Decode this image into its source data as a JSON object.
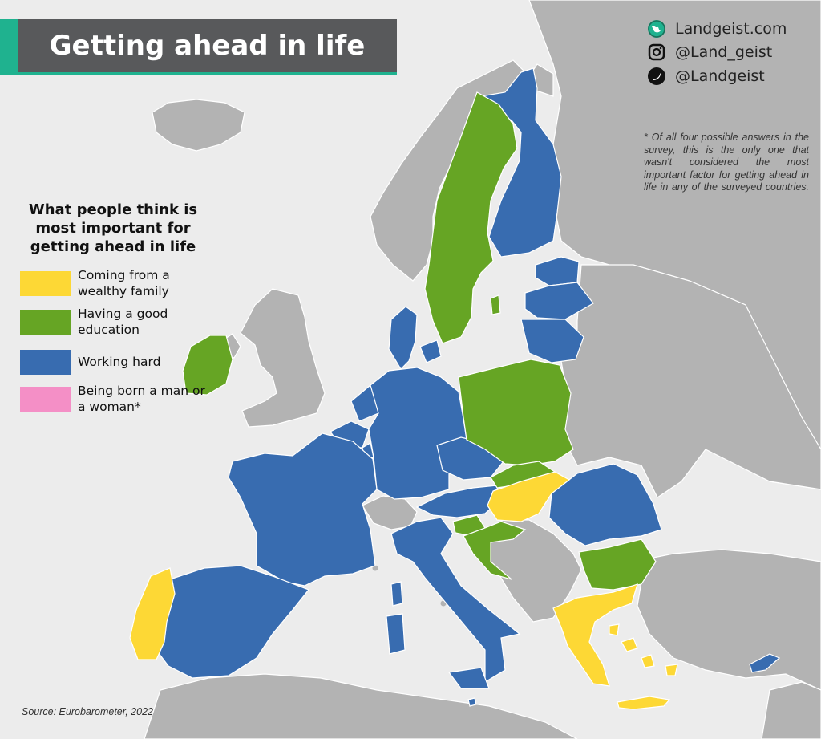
{
  "title": "Getting ahead in life",
  "brand": {
    "website": "Landgeist.com",
    "instagram": "@Land_geist",
    "twitter": "@Landgeist",
    "website_icon": "globe-icon",
    "instagram_icon": "instagram-icon",
    "twitter_icon": "twitter-bird-icon"
  },
  "footnote": "* Of all four possible answers in the survey, this is the only one that wasn't considered the most important factor for getting ahead in life in any of the surveyed countries.",
  "legend": {
    "title": "What people think is most important for getting ahead in life",
    "items": [
      {
        "label": "Coming from a wealthy family",
        "color": "#fdd835"
      },
      {
        "label": "Having a good education",
        "color": "#66a524"
      },
      {
        "label": "Working hard",
        "color": "#386cb0"
      },
      {
        "label": "Being born a man or a woman*",
        "color": "#f48fc6"
      }
    ]
  },
  "source": "Source: Eurobarometer, 2022",
  "colors": {
    "sea": "#ececec",
    "non_surveyed": "#b3b3b3",
    "wealthy_family": "#fdd835",
    "good_education": "#66a524",
    "working_hard": "#386cb0",
    "born_man_or_woman": "#f48fc6",
    "banner": "#58595b",
    "accent": "#1fb28f"
  },
  "categories": {
    "Coming from a wealthy family": [
      "Portugal",
      "Hungary",
      "Greece"
    ],
    "Having a good education": [
      "Sweden",
      "Ireland",
      "Poland",
      "Slovakia",
      "Slovenia",
      "Croatia",
      "Bulgaria"
    ],
    "Working hard": [
      "Finland",
      "Estonia",
      "Latvia",
      "Lithuania",
      "Denmark",
      "Germany",
      "Netherlands",
      "Belgium",
      "Luxembourg",
      "France",
      "Spain",
      "Italy",
      "Austria",
      "Czechia",
      "Romania",
      "Malta",
      "Cyprus"
    ]
  }
}
